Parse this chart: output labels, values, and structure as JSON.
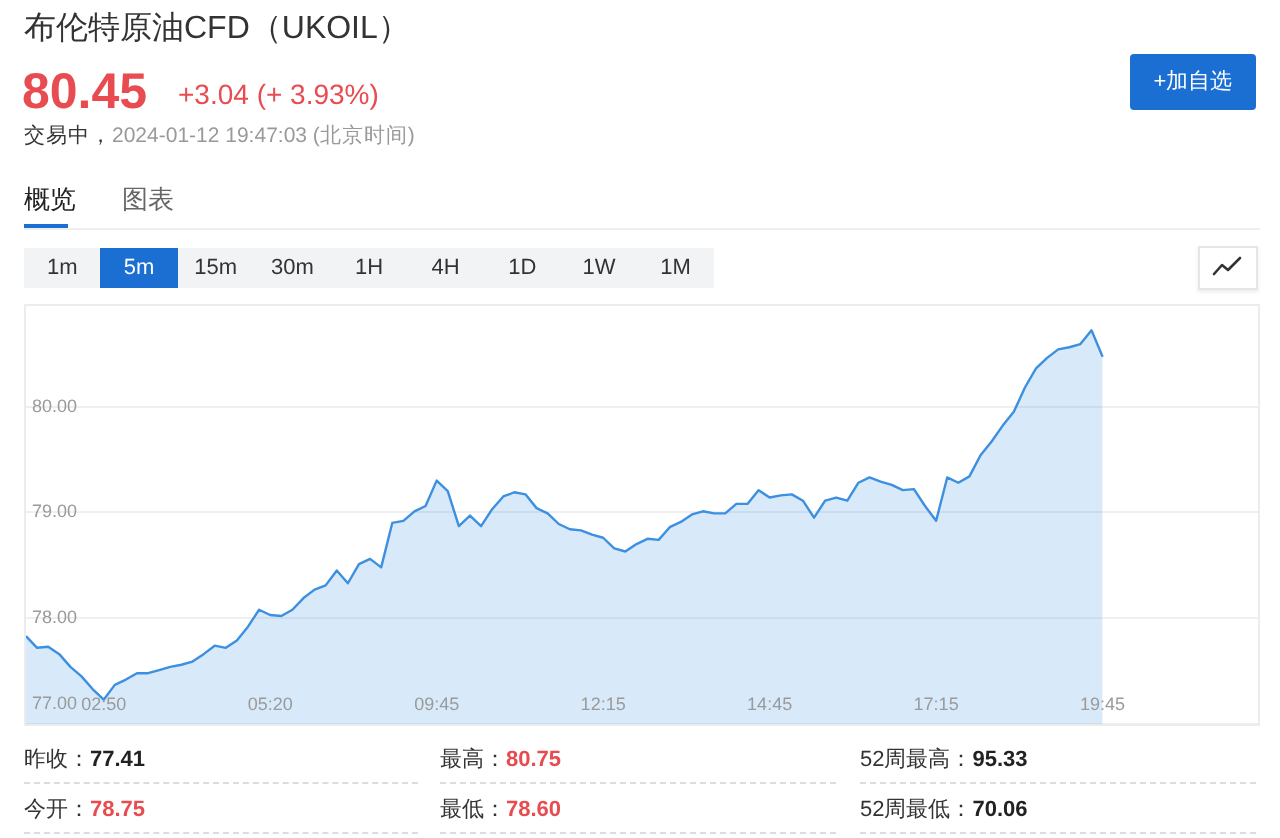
{
  "chart_data": {
    "type": "area",
    "title": "布伦特原油CFD（UKOIL）",
    "categories": [
      null,
      null,
      null,
      null,
      null,
      null,
      null,
      "02:50",
      null,
      null,
      null,
      null,
      null,
      null,
      null,
      null,
      null,
      null,
      null,
      null,
      null,
      null,
      "05:20",
      null,
      null,
      null,
      null,
      null,
      null,
      null,
      null,
      null,
      null,
      null,
      null,
      null,
      null,
      "09:45",
      null,
      null,
      null,
      null,
      null,
      null,
      null,
      null,
      null,
      null,
      null,
      null,
      null,
      null,
      "12:15",
      null,
      null,
      null,
      null,
      null,
      null,
      null,
      null,
      null,
      null,
      null,
      null,
      null,
      null,
      "14:45",
      null,
      null,
      null,
      null,
      null,
      null,
      null,
      null,
      null,
      null,
      null,
      null,
      null,
      null,
      "17:15",
      null,
      null,
      null,
      null,
      null,
      null,
      null,
      null,
      null,
      null,
      null,
      null,
      null,
      null,
      "19:45",
      null,
      null,
      null,
      null,
      null,
      null,
      null,
      null,
      null,
      null,
      null,
      null,
      null,
      null
    ],
    "values": [
      77.83,
      77.72,
      77.73,
      77.66,
      77.54,
      77.45,
      77.33,
      77.23,
      77.37,
      77.42,
      77.48,
      77.48,
      77.51,
      77.54,
      77.56,
      77.59,
      77.66,
      77.74,
      77.72,
      77.79,
      77.92,
      78.08,
      78.03,
      78.02,
      78.08,
      78.19,
      78.27,
      78.31,
      78.45,
      78.33,
      78.51,
      78.56,
      78.48,
      78.9,
      78.92,
      79.01,
      79.06,
      79.3,
      79.2,
      78.87,
      78.97,
      78.87,
      79.03,
      79.15,
      79.19,
      79.17,
      79.04,
      78.99,
      78.89,
      78.84,
      78.83,
      78.79,
      78.76,
      78.66,
      78.63,
      78.7,
      78.75,
      78.74,
      78.86,
      78.91,
      78.98,
      79.01,
      78.99,
      78.99,
      79.08,
      79.08,
      79.21,
      79.14,
      79.16,
      79.17,
      79.11,
      78.95,
      79.11,
      79.14,
      79.11,
      79.28,
      79.33,
      79.29,
      79.26,
      79.21,
      79.22,
      79.06,
      78.92,
      79.33,
      79.28,
      79.34,
      79.54,
      79.67,
      79.82,
      79.95,
      80.18,
      80.36,
      80.46,
      80.54,
      80.56,
      80.59,
      80.72,
      80.47,
      null,
      null,
      null,
      null,
      null,
      null,
      null,
      null,
      null,
      null,
      null,
      null,
      null,
      null
    ],
    "color": "#3d8fe0",
    "ylim": [
      77,
      80.95
    ],
    "yticks": [
      {
        "value": 77,
        "label": "77.00"
      },
      {
        "value": 78,
        "label": "78.00"
      },
      {
        "value": 79,
        "label": "79.00"
      },
      {
        "value": 80,
        "label": "80.00"
      }
    ],
    "grid": "y",
    "marker": "none",
    "annotations": [
      "80.45",
      "+3.04 (+ 3.93%)",
      "交易中，",
      "2024-01-12 19:47:03 (北京时间)",
      "+加自选",
      "概览",
      "图表",
      "1m",
      "5m",
      "15m",
      "30m",
      "1H",
      "4H",
      "1D",
      "1W",
      "1M",
      "昨收：",
      "77.41",
      "最高：",
      "80.75",
      "52周最高：",
      "95.33",
      "今开：",
      "78.75",
      "最低：",
      "78.60",
      "52周最低：",
      "70.06"
    ]
  }
}
